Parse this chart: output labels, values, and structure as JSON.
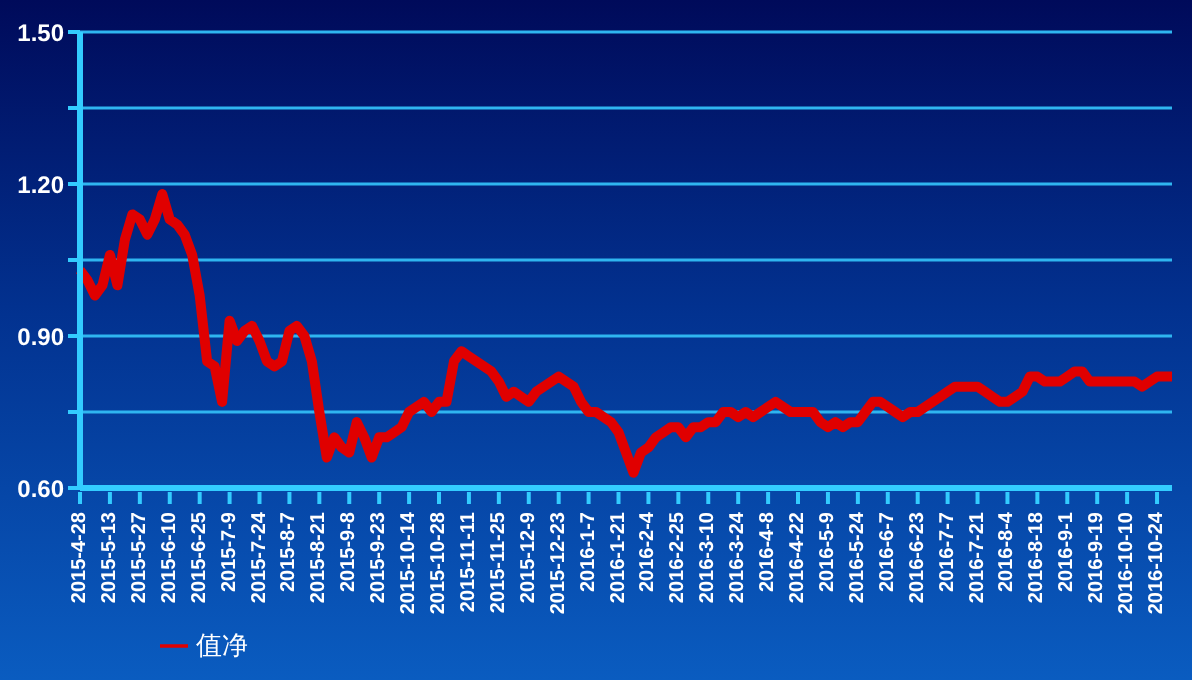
{
  "chart_data": {
    "type": "line",
    "categories": [
      "2015-4-28",
      null,
      null,
      null,
      "2015-5-13",
      null,
      null,
      null,
      "2015-5-27",
      null,
      null,
      null,
      "2015-6-10",
      null,
      null,
      null,
      "2015-6-25",
      null,
      null,
      null,
      "2015-7-9",
      null,
      null,
      null,
      "2015-7-24",
      null,
      null,
      null,
      "2015-8-7",
      null,
      null,
      null,
      "2015-8-21",
      null,
      null,
      null,
      "2015-9-8",
      null,
      null,
      null,
      "2015-9-23",
      null,
      null,
      null,
      "2015-10-14",
      null,
      null,
      null,
      "2015-10-28",
      null,
      null,
      null,
      "2015-11-11",
      null,
      null,
      null,
      "2015-11-25",
      null,
      null,
      null,
      "2015-12-9",
      null,
      null,
      null,
      "2015-12-23",
      null,
      null,
      null,
      "2016-1-7",
      null,
      null,
      null,
      "2016-1-21",
      null,
      null,
      null,
      "2016-2-4",
      null,
      null,
      null,
      "2016-2-25",
      null,
      null,
      null,
      "2016-3-10",
      null,
      null,
      null,
      "2016-3-24",
      null,
      null,
      null,
      "2016-4-8",
      null,
      null,
      null,
      "2016-4-22",
      null,
      null,
      null,
      "2016-5-9",
      null,
      null,
      null,
      "2016-5-24",
      null,
      null,
      null,
      "2016-6-7",
      null,
      null,
      null,
      "2016-6-23",
      null,
      null,
      null,
      "2016-7-7",
      null,
      null,
      null,
      "2016-7-21",
      null,
      null,
      null,
      "2016-8-4",
      null,
      null,
      null,
      "2016-8-18",
      null,
      null,
      null,
      "2016-9-1",
      null,
      null,
      null,
      "2016-9-19",
      null,
      null,
      null,
      "2016-10-10",
      null,
      null,
      null,
      "2016-10-24",
      null,
      null
    ],
    "series": [
      {
        "name": "值净",
        "color": "#e00000",
        "values": [
          1.03,
          1.01,
          0.98,
          1.0,
          1.06,
          1.0,
          1.09,
          1.14,
          1.13,
          1.1,
          1.13,
          1.18,
          1.13,
          1.12,
          1.1,
          1.06,
          0.98,
          0.85,
          0.84,
          0.77,
          0.93,
          0.89,
          0.91,
          0.92,
          0.89,
          0.85,
          0.84,
          0.85,
          0.91,
          0.92,
          0.9,
          0.85,
          0.75,
          0.66,
          0.7,
          0.68,
          0.67,
          0.73,
          0.7,
          0.66,
          0.7,
          0.7,
          0.71,
          0.72,
          0.75,
          0.76,
          0.77,
          0.75,
          0.77,
          0.77,
          0.85,
          0.87,
          0.86,
          0.85,
          0.84,
          0.83,
          0.81,
          0.78,
          0.79,
          0.78,
          0.77,
          0.79,
          0.8,
          0.81,
          0.82,
          0.81,
          0.8,
          0.77,
          0.75,
          0.75,
          0.74,
          0.73,
          0.71,
          0.67,
          0.63,
          0.67,
          0.68,
          0.7,
          0.71,
          0.72,
          0.72,
          0.7,
          0.72,
          0.72,
          0.73,
          0.73,
          0.75,
          0.75,
          0.74,
          0.75,
          0.74,
          0.75,
          0.76,
          0.77,
          0.76,
          0.75,
          0.75,
          0.75,
          0.75,
          0.73,
          0.72,
          0.73,
          0.72,
          0.73,
          0.73,
          0.75,
          0.77,
          0.77,
          0.76,
          0.75,
          0.74,
          0.75,
          0.75,
          0.76,
          0.77,
          0.78,
          0.79,
          0.8,
          0.8,
          0.8,
          0.8,
          0.79,
          0.78,
          0.77,
          0.77,
          0.78,
          0.79,
          0.82,
          0.82,
          0.81,
          0.81,
          0.81,
          0.82,
          0.83,
          0.83,
          0.81,
          0.81,
          0.81,
          0.81,
          0.81,
          0.81,
          0.81,
          0.8,
          0.81,
          0.82,
          0.82,
          0.82
        ]
      }
    ],
    "ylim": [
      0.6,
      1.5
    ],
    "yticks": [
      {
        "value": 0.6,
        "label": "0.60"
      },
      {
        "value": 0.75,
        "label": null
      },
      {
        "value": 0.9,
        "label": "0.90"
      },
      {
        "value": 1.05,
        "label": null
      },
      {
        "value": 1.2,
        "label": "1.20"
      },
      {
        "value": 1.35,
        "label": null
      },
      {
        "value": 1.5,
        "label": "1.50"
      }
    ],
    "grid": "y",
    "legend": "bottom left",
    "marker": "none",
    "line_style": "solid"
  }
}
